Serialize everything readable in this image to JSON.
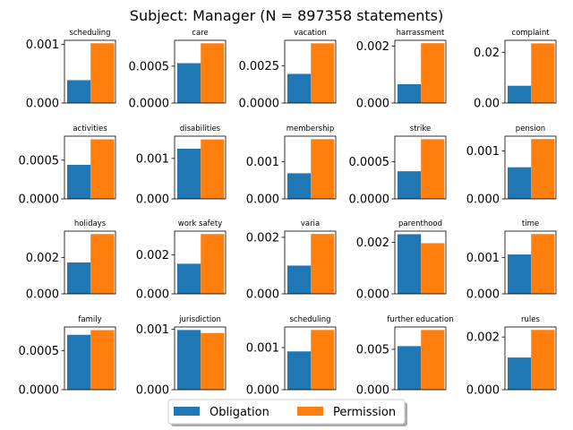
{
  "title": "Subject: Manager (N = 897358 statements)",
  "colors": {
    "obligation": "#1f77b4",
    "permission": "#ff7f0e"
  },
  "legend": {
    "placement": "bottom-center",
    "entries": [
      "Obligation",
      "Permission"
    ]
  },
  "chart_data": [
    {
      "type": "bar",
      "title": "scheduling",
      "series": [
        {
          "name": "Obligation",
          "values": [
            0.00039
          ]
        },
        {
          "name": "Permission",
          "values": [
            0.00102
          ]
        }
      ],
      "ylim": [
        0,
        0.00107
      ],
      "yticks": [
        0,
        0.001
      ],
      "ytick_labels": [
        "0.000",
        "0.001"
      ]
    },
    {
      "type": "bar",
      "title": "care",
      "series": [
        {
          "name": "Obligation",
          "values": [
            0.00054
          ]
        },
        {
          "name": "Permission",
          "values": [
            0.00081
          ]
        }
      ],
      "ylim": [
        0,
        0.00085
      ],
      "yticks": [
        0,
        0.0005
      ],
      "ytick_labels": [
        "0.0000",
        "0.0005"
      ]
    },
    {
      "type": "bar",
      "title": "vacation",
      "series": [
        {
          "name": "Obligation",
          "values": [
            0.00195
          ]
        },
        {
          "name": "Permission",
          "values": [
            0.004
          ]
        }
      ],
      "ylim": [
        0,
        0.0042
      ],
      "yticks": [
        0,
        0.0025
      ],
      "ytick_labels": [
        "0.0000",
        "0.0025"
      ]
    },
    {
      "type": "bar",
      "title": "harrassment",
      "series": [
        {
          "name": "Obligation",
          "values": [
            0.00066
          ]
        },
        {
          "name": "Permission",
          "values": [
            0.0021
          ]
        }
      ],
      "ylim": [
        0,
        0.0022
      ],
      "yticks": [
        0,
        0.002
      ],
      "ytick_labels": [
        "0.000",
        "0.002"
      ]
    },
    {
      "type": "bar",
      "title": "complaint",
      "series": [
        {
          "name": "Obligation",
          "values": [
            0.0068
          ]
        },
        {
          "name": "Permission",
          "values": [
            0.0235
          ]
        }
      ],
      "ylim": [
        0,
        0.0247
      ],
      "yticks": [
        0,
        0.02
      ],
      "ytick_labels": [
        "0.00",
        "0.02"
      ]
    },
    {
      "type": "bar",
      "title": "activities",
      "series": [
        {
          "name": "Obligation",
          "values": [
            0.00044
          ]
        },
        {
          "name": "Permission",
          "values": [
            0.00077
          ]
        }
      ],
      "ylim": [
        0,
        0.00081
      ],
      "yticks": [
        0,
        0.0005
      ],
      "ytick_labels": [
        "0.0000",
        "0.0005"
      ]
    },
    {
      "type": "bar",
      "title": "disabilities",
      "series": [
        {
          "name": "Obligation",
          "values": [
            0.00124
          ]
        },
        {
          "name": "Permission",
          "values": [
            0.00147
          ]
        }
      ],
      "ylim": [
        0,
        0.00155
      ],
      "yticks": [
        0,
        0.001
      ],
      "ytick_labels": [
        "0.000",
        "0.001"
      ]
    },
    {
      "type": "bar",
      "title": "membership",
      "series": [
        {
          "name": "Obligation",
          "values": [
            0.00069
          ]
        },
        {
          "name": "Permission",
          "values": [
            0.00161
          ]
        }
      ],
      "ylim": [
        0,
        0.00169
      ],
      "yticks": [
        0,
        0.001
      ],
      "ytick_labels": [
        "0.000",
        "0.001"
      ]
    },
    {
      "type": "bar",
      "title": "strike",
      "series": [
        {
          "name": "Obligation",
          "values": [
            0.00037
          ]
        },
        {
          "name": "Permission",
          "values": [
            0.0008
          ]
        }
      ],
      "ylim": [
        0,
        0.00084
      ],
      "yticks": [
        0,
        0.0005
      ],
      "ytick_labels": [
        "0.0000",
        "0.0005"
      ]
    },
    {
      "type": "bar",
      "title": "pension",
      "series": [
        {
          "name": "Obligation",
          "values": [
            0.00066
          ]
        },
        {
          "name": "Permission",
          "values": [
            0.00125
          ]
        }
      ],
      "ylim": [
        0,
        0.00131
      ],
      "yticks": [
        0,
        0.001
      ],
      "ytick_labels": [
        "0.000",
        "0.001"
      ]
    },
    {
      "type": "bar",
      "title": "holidays",
      "series": [
        {
          "name": "Obligation",
          "values": [
            0.00172
          ]
        },
        {
          "name": "Permission",
          "values": [
            0.00328
          ]
        }
      ],
      "ylim": [
        0,
        0.00344
      ],
      "yticks": [
        0,
        0.002
      ],
      "ytick_labels": [
        "0.000",
        "0.002"
      ]
    },
    {
      "type": "bar",
      "title": "work safety",
      "series": [
        {
          "name": "Obligation",
          "values": [
            0.00155
          ]
        },
        {
          "name": "Permission",
          "values": [
            0.00308
          ]
        }
      ],
      "ylim": [
        0,
        0.00323
      ],
      "yticks": [
        0,
        0.002
      ],
      "ytick_labels": [
        "0.000",
        "0.002"
      ]
    },
    {
      "type": "bar",
      "title": "varia",
      "series": [
        {
          "name": "Obligation",
          "values": [
            0.001
          ]
        },
        {
          "name": "Permission",
          "values": [
            0.00212
          ]
        }
      ],
      "ylim": [
        0,
        0.00222
      ],
      "yticks": [
        0,
        0.002
      ],
      "ytick_labels": [
        "0.000",
        "0.002"
      ]
    },
    {
      "type": "bar",
      "title": "parenthood",
      "series": [
        {
          "name": "Obligation",
          "values": [
            0.00232
          ]
        },
        {
          "name": "Permission",
          "values": [
            0.00197
          ]
        }
      ],
      "ylim": [
        0,
        0.00244
      ],
      "yticks": [
        0,
        0.002
      ],
      "ytick_labels": [
        "0.000",
        "0.002"
      ]
    },
    {
      "type": "bar",
      "title": "time",
      "series": [
        {
          "name": "Obligation",
          "values": [
            0.00108
          ]
        },
        {
          "name": "Permission",
          "values": [
            0.00164
          ]
        }
      ],
      "ylim": [
        0,
        0.00172
      ],
      "yticks": [
        0,
        0.001
      ],
      "ytick_labels": [
        "0.000",
        "0.001"
      ]
    },
    {
      "type": "bar",
      "title": "family",
      "series": [
        {
          "name": "Obligation",
          "values": [
            0.0007
          ]
        },
        {
          "name": "Permission",
          "values": [
            0.00076
          ]
        }
      ],
      "ylim": [
        0,
        0.0008
      ],
      "yticks": [
        0,
        0.0005
      ],
      "ytick_labels": [
        "0.0000",
        "0.0005"
      ]
    },
    {
      "type": "bar",
      "title": "jurisdiction",
      "series": [
        {
          "name": "Obligation",
          "values": [
            0.00099
          ]
        },
        {
          "name": "Permission",
          "values": [
            0.00094
          ]
        }
      ],
      "ylim": [
        0,
        0.00104
      ],
      "yticks": [
        0,
        0.001
      ],
      "ytick_labels": [
        "0.000",
        "0.001"
      ]
    },
    {
      "type": "bar",
      "title": "scheduling",
      "series": [
        {
          "name": "Obligation",
          "values": [
            0.00091
          ]
        },
        {
          "name": "Permission",
          "values": [
            0.00142
          ]
        }
      ],
      "ylim": [
        0,
        0.00149
      ],
      "yticks": [
        0,
        0.001
      ],
      "ytick_labels": [
        "0.000",
        "0.001"
      ]
    },
    {
      "type": "bar",
      "title": "further education",
      "series": [
        {
          "name": "Obligation",
          "values": [
            0.0054
          ]
        },
        {
          "name": "Permission",
          "values": [
            0.0074
          ]
        }
      ],
      "ylim": [
        0,
        0.00777
      ],
      "yticks": [
        0,
        0.005
      ],
      "ytick_labels": [
        "0.000",
        "0.005"
      ]
    },
    {
      "type": "bar",
      "title": "rules",
      "series": [
        {
          "name": "Obligation",
          "values": [
            0.00122
          ]
        },
        {
          "name": "Permission",
          "values": [
            0.00227
          ]
        }
      ],
      "ylim": [
        0,
        0.00238
      ],
      "yticks": [
        0,
        0.002
      ],
      "ytick_labels": [
        "0.000",
        "0.002"
      ]
    }
  ]
}
